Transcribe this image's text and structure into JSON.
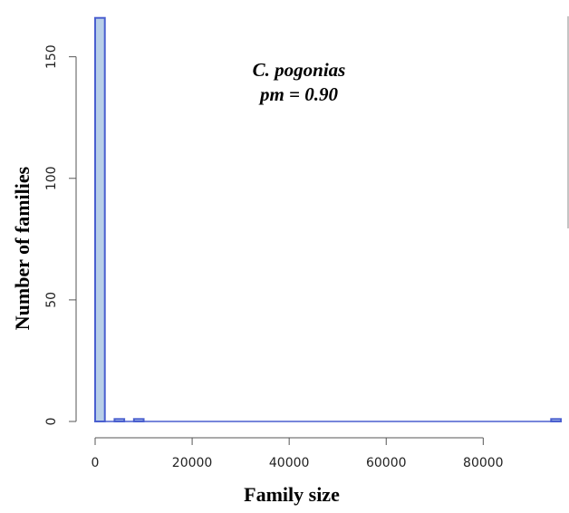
{
  "chart_data": {
    "type": "bar",
    "title": "",
    "xlabel": "Family size",
    "ylabel": "Number of families",
    "annotation": {
      "line1": "C. pogonias",
      "line2": "pm = 0.90"
    },
    "xlim": [
      0,
      96000
    ],
    "ylim": [
      0,
      170
    ],
    "x_ticks": [
      0,
      20000,
      40000,
      60000,
      80000
    ],
    "x_tick_labels": [
      "0",
      "20000",
      "40000",
      "60000",
      "80000"
    ],
    "y_ticks": [
      0,
      50,
      100,
      150
    ],
    "y_tick_labels": [
      "0",
      "50",
      "100",
      "150"
    ],
    "bin_width": 2000,
    "bins": [
      {
        "x_start": 0,
        "x_end": 2000,
        "count": 166
      },
      {
        "x_start": 4000,
        "x_end": 6000,
        "count": 1
      },
      {
        "x_start": 8000,
        "x_end": 10000,
        "count": 1
      },
      {
        "x_start": 94000,
        "x_end": 96000,
        "count": 1
      }
    ],
    "bar_fill": "#b8cfe8",
    "bar_stroke": "#4a5fcf",
    "grid": false,
    "legend": "none"
  }
}
